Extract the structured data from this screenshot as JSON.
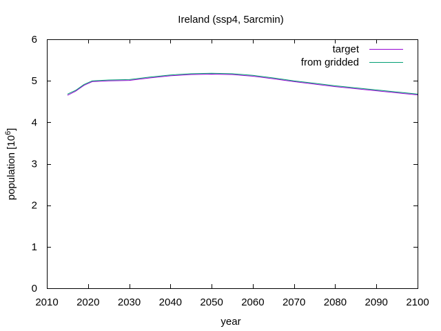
{
  "chart_data": {
    "type": "line",
    "title": "Ireland (ssp4, 5arcmin)",
    "xlabel": "year",
    "ylabel_main": "population [10",
    "ylabel_exp": "6",
    "ylabel_close": "]",
    "xlim": [
      2010,
      2100
    ],
    "ylim": [
      0,
      6
    ],
    "xticks": [
      2010,
      2020,
      2030,
      2040,
      2050,
      2060,
      2070,
      2080,
      2090,
      2100
    ],
    "yticks": [
      0,
      1,
      2,
      3,
      4,
      5,
      6
    ],
    "grid": false,
    "legend_position": "top-right",
    "series": [
      {
        "name": "target",
        "color": "#9400d3",
        "x": [
          2015,
          2017,
          2019,
          2021,
          2025,
          2030,
          2035,
          2040,
          2045,
          2050,
          2055,
          2060,
          2065,
          2070,
          2075,
          2080,
          2085,
          2090,
          2095,
          2100
        ],
        "y": [
          4.65,
          4.75,
          4.89,
          4.98,
          5.0,
          5.01,
          5.07,
          5.12,
          5.15,
          5.16,
          5.15,
          5.11,
          5.05,
          4.98,
          4.92,
          4.86,
          4.81,
          4.76,
          4.71,
          4.66
        ]
      },
      {
        "name": "from gridded",
        "color": "#009e73",
        "x": [
          2015,
          2017,
          2019,
          2021,
          2025,
          2030,
          2035,
          2040,
          2045,
          2050,
          2055,
          2060,
          2065,
          2070,
          2075,
          2080,
          2085,
          2090,
          2095,
          2100
        ],
        "y": [
          4.68,
          4.77,
          4.91,
          5.0,
          5.02,
          5.03,
          5.09,
          5.14,
          5.17,
          5.18,
          5.17,
          5.13,
          5.07,
          5.0,
          4.94,
          4.88,
          4.83,
          4.78,
          4.73,
          4.68
        ]
      }
    ]
  }
}
